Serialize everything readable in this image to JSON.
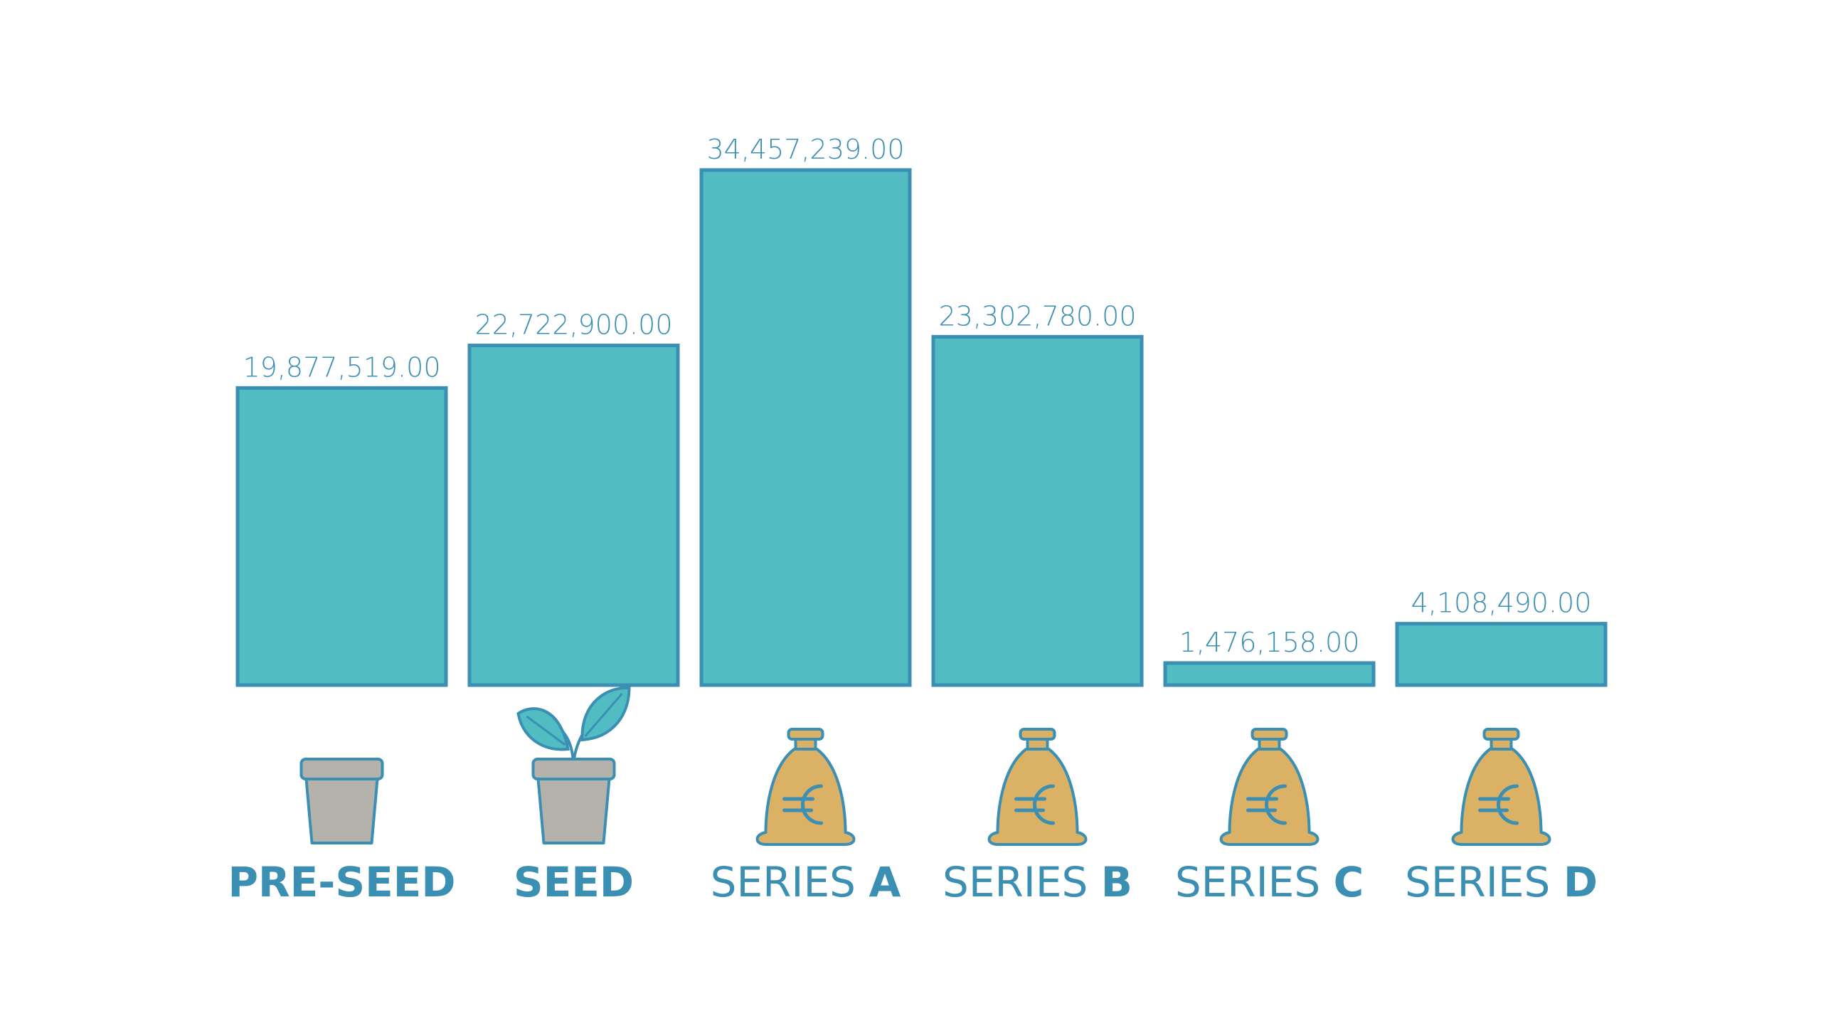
{
  "chart_data": {
    "type": "bar",
    "categories": [
      "PRE-SEED",
      "SEED",
      "SERIES A",
      "SERIES B",
      "SERIES C",
      "SERIES D"
    ],
    "category_parts": [
      {
        "light": "",
        "bold": "PRE-SEED"
      },
      {
        "light": "",
        "bold": "SEED"
      },
      {
        "light": "SERIES ",
        "bold": "A"
      },
      {
        "light": "SERIES ",
        "bold": "B"
      },
      {
        "light": "SERIES ",
        "bold": "C"
      },
      {
        "light": "SERIES ",
        "bold": "D"
      }
    ],
    "values": [
      19877519.0,
      22722900.0,
      34457239.0,
      23302780.0,
      1476158.0,
      4108490.0
    ],
    "value_labels": [
      "19,877,519.00",
      "22,722,900.00",
      "34,457,239.00",
      "23,302,780.00",
      "1,476,158.00",
      "4,108,490.00"
    ],
    "icons": [
      "empty-pot-icon",
      "sprout-pot-icon",
      "euro-money-bag-icon",
      "euro-money-bag-icon",
      "euro-money-bag-icon",
      "euro-money-bag-icon"
    ],
    "title": "",
    "xlabel": "",
    "ylabel": "",
    "ylim": [
      0,
      34457239.0
    ],
    "grid": false,
    "legend": "none"
  },
  "colors": {
    "bar_fill": "#52bcc3",
    "bar_stroke": "#3b8fb3",
    "text": "#3b8fb3",
    "pot": "#b4b2ab",
    "bag": "#dbb165",
    "leaf": "#52bcc3",
    "soil": "#b8834a",
    "background": "#ffffff"
  }
}
